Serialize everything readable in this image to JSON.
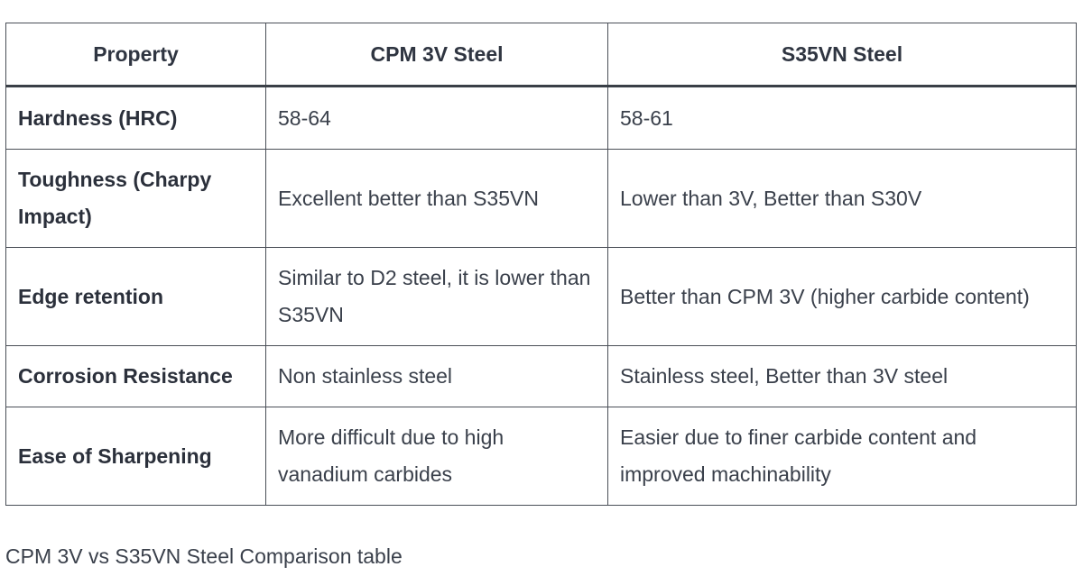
{
  "table": {
    "headers": [
      "Property",
      "CPM 3V Steel",
      "S35VN Steel"
    ],
    "rows": [
      {
        "property": "Hardness (HRC)",
        "cpm3v": "58-64",
        "s35vn": "58-61"
      },
      {
        "property": "Toughness (Charpy Impact)",
        "cpm3v": "Excellent better than S35VN",
        "s35vn": "Lower than 3V, Better than S30V"
      },
      {
        "property": "Edge retention",
        "cpm3v": "Similar to D2 steel, it is lower than S35VN",
        "s35vn": "Better than CPM 3V (higher carbide content)"
      },
      {
        "property": "Corrosion Resistance",
        "cpm3v": "Non stainless steel",
        "s35vn": "Stainless steel, Better than 3V steel"
      },
      {
        "property": "Ease of Sharpening",
        "cpm3v": "More difficult due to high vanadium carbides",
        "s35vn": "Easier due to finer carbide content and improved machinability"
      }
    ]
  },
  "caption": "CPM 3V vs S35VN Steel Comparison table"
}
